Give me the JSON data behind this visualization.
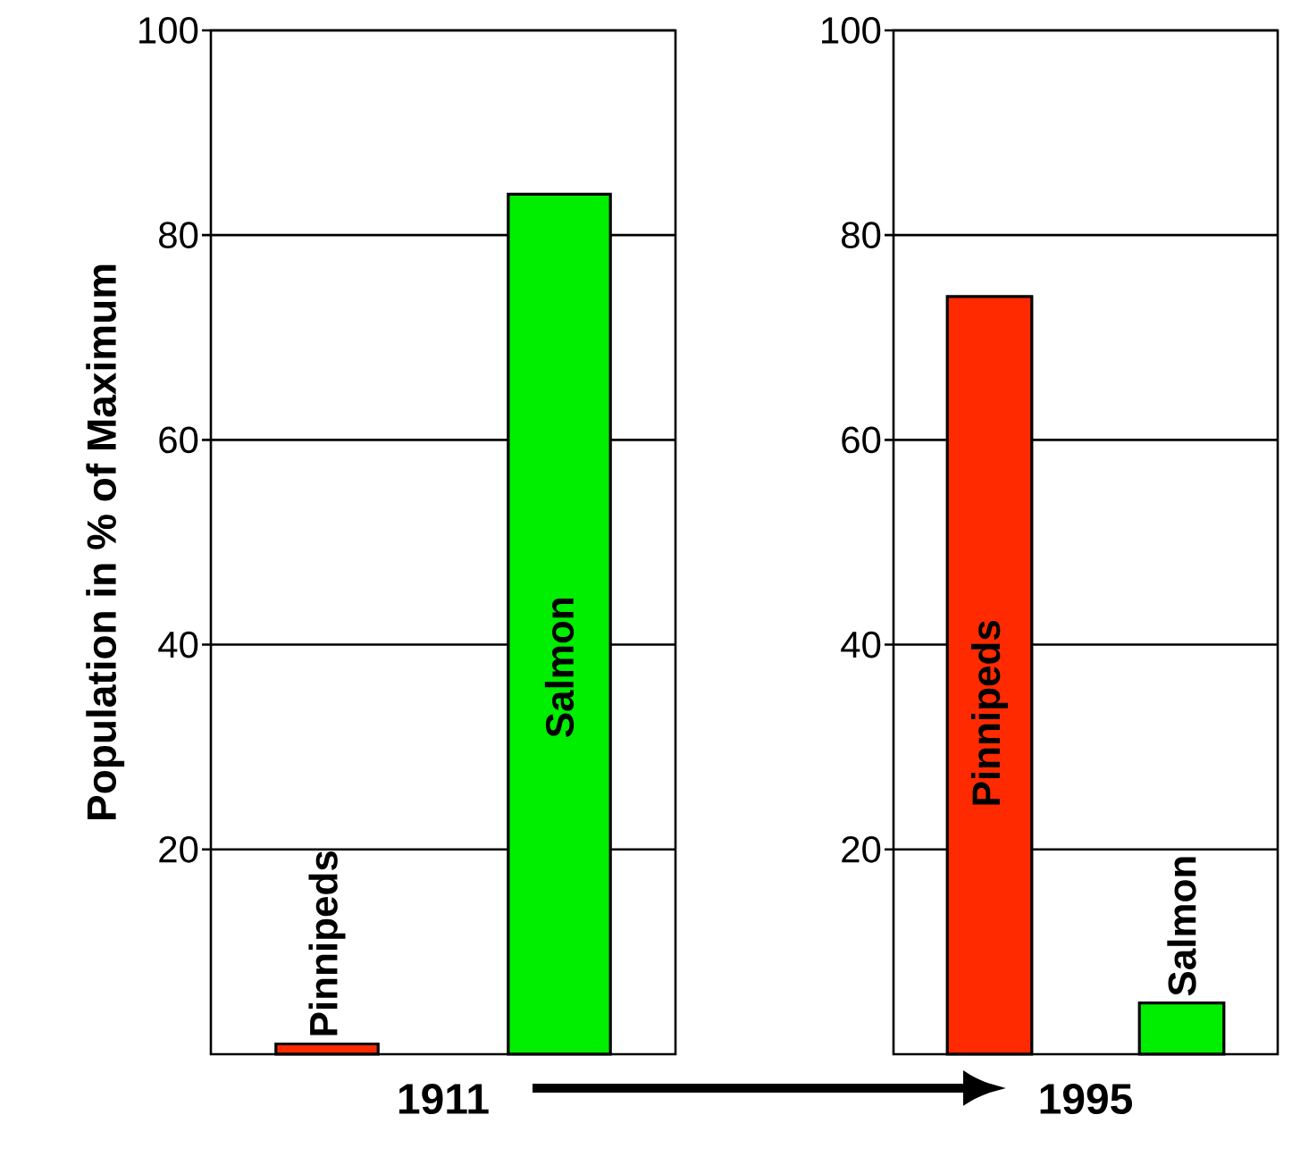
{
  "chart_data": [
    {
      "type": "bar",
      "xlabel": "1911",
      "ylabel": "Population in % of Maximum",
      "categories": [
        "Pinnipeds",
        "Salmon"
      ],
      "values": [
        1,
        84
      ],
      "colors": [
        "#ff2a00",
        "#00ee00"
      ],
      "ylim": [
        0,
        100
      ],
      "yticks": [
        20,
        40,
        60,
        80,
        100
      ],
      "grid": true
    },
    {
      "type": "bar",
      "xlabel": "1995",
      "categories": [
        "Pinnipeds",
        "Salmon"
      ],
      "values": [
        74,
        5
      ],
      "colors": [
        "#ff2a00",
        "#00ee00"
      ],
      "ylim": [
        0,
        100
      ],
      "yticks": [
        20,
        40,
        60,
        80,
        100
      ],
      "grid": true
    }
  ]
}
